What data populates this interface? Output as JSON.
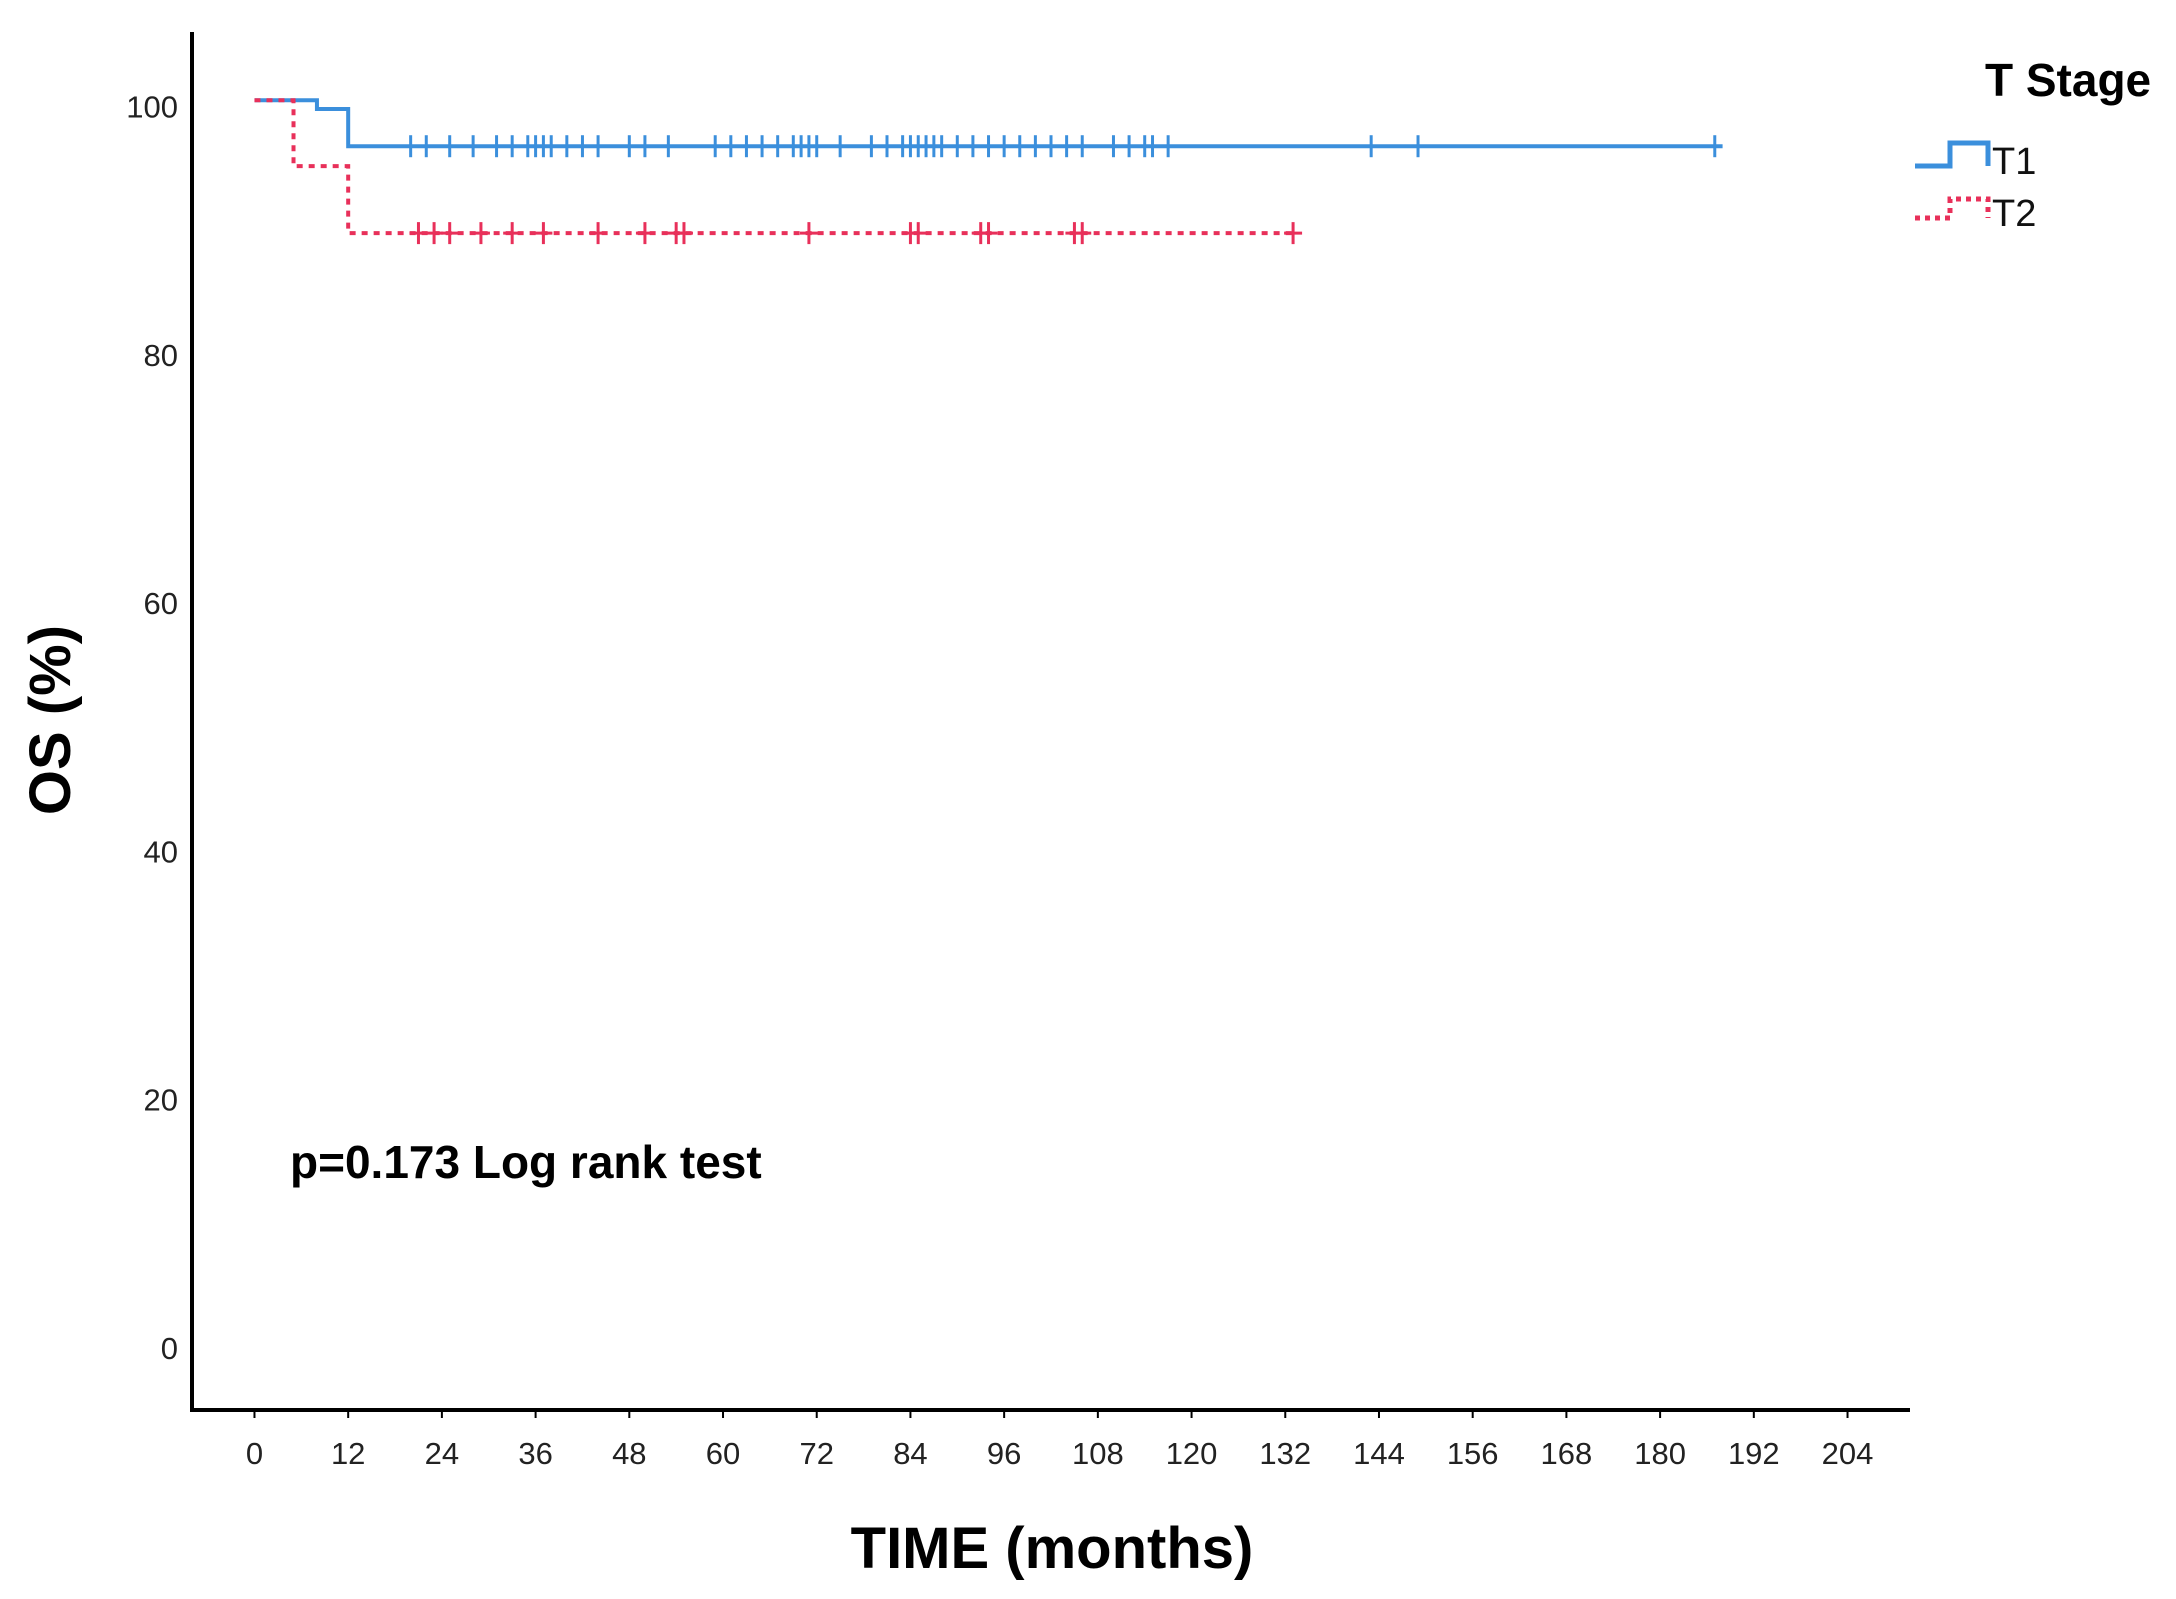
{
  "chart_data": {
    "type": "line",
    "subtype": "kaplan-meier",
    "title": "",
    "xlabel": "TIME (months)",
    "ylabel": "OS (%)",
    "xlim": [
      -8,
      212
    ],
    "ylim": [
      -5,
      106
    ],
    "x_ticks": [
      0,
      12,
      24,
      36,
      48,
      60,
      72,
      84,
      96,
      108,
      120,
      132,
      144,
      156,
      168,
      180,
      192,
      204
    ],
    "y_ticks": [
      0,
      20,
      40,
      60,
      80,
      100
    ],
    "grid": false,
    "legend": {
      "title": "T Stage",
      "position": "top-right"
    },
    "annotation": "p=0.173 Log rank test",
    "series": [
      {
        "name": "T1",
        "color": "#3b8fdc",
        "dash": "solid",
        "steps": [
          [
            0,
            100.5
          ],
          [
            8,
            99.8
          ],
          [
            12,
            96.8
          ],
          [
            188,
            96.8
          ]
        ],
        "censored": [
          20,
          22,
          25,
          28,
          31,
          33,
          35,
          36,
          37,
          38,
          40,
          42,
          44,
          48,
          50,
          53,
          59,
          61,
          63,
          65,
          67,
          69,
          70,
          71,
          72,
          75,
          79,
          81,
          83,
          84,
          85,
          86,
          87,
          88,
          90,
          92,
          94,
          96,
          98,
          100,
          102,
          104,
          106,
          110,
          112,
          114,
          115,
          117,
          143,
          149,
          187
        ]
      },
      {
        "name": "T2",
        "color": "#e8305a",
        "dash": "dotted",
        "steps": [
          [
            0,
            100.5
          ],
          [
            5,
            95.2
          ],
          [
            12,
            89.8
          ],
          [
            133,
            89.8
          ]
        ],
        "censored": [
          21,
          23,
          25,
          29,
          33,
          37,
          44,
          50,
          54,
          55,
          71,
          84,
          85,
          93,
          94,
          105,
          106,
          133
        ]
      }
    ]
  }
}
